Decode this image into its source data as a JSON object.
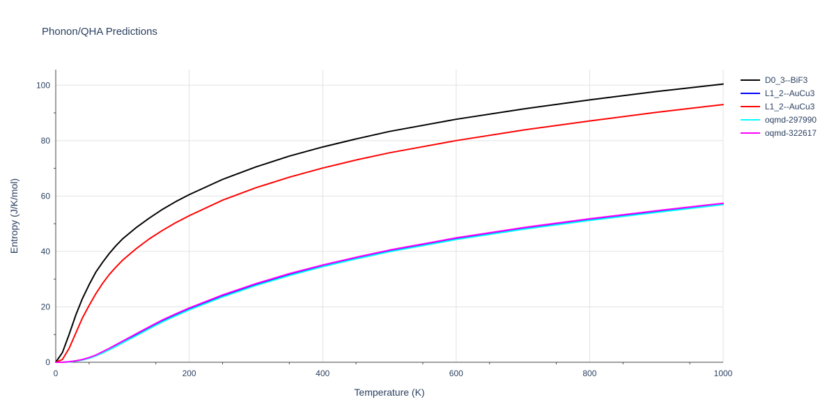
{
  "chart_data": {
    "type": "line",
    "title": "Phonon/QHA Predictions",
    "xlabel": "Temperature (K)",
    "ylabel": "Entropy (J/K/mol)",
    "xlim": [
      0,
      1000
    ],
    "ylim": [
      0,
      105.6
    ],
    "x_ticks": [
      0,
      200,
      400,
      600,
      800,
      1000
    ],
    "y_ticks": [
      0,
      20,
      40,
      60,
      80,
      100
    ],
    "grid": true,
    "legend_position": "right",
    "x": [
      0,
      10,
      20,
      30,
      40,
      50,
      60,
      70,
      80,
      90,
      100,
      120,
      140,
      160,
      180,
      200,
      250,
      300,
      350,
      400,
      450,
      500,
      600,
      700,
      800,
      900,
      1000
    ],
    "series": [
      {
        "name": "D0_3--BiF3",
        "color": "#000000",
        "values": [
          0,
          3.5,
          10,
          17,
          23,
          28,
          32.5,
          36,
          39.2,
          42,
          44.5,
          48.5,
          52,
          55.2,
          58,
          60.5,
          66,
          70.5,
          74.4,
          77.7,
          80.6,
          83.3,
          87.7,
          91.4,
          94.7,
          97.7,
          100.4
        ]
      },
      {
        "name": "L1_2--AuCu3",
        "color": "#0000ff",
        "values": [
          0,
          0,
          0.2,
          0.5,
          0.9,
          1.6,
          2.5,
          3.6,
          4.8,
          6.0,
          7.3,
          9.8,
          12.4,
          14.9,
          17.1,
          19.2,
          23.9,
          28.0,
          31.6,
          34.8,
          37.6,
          40.2,
          44.6,
          48.3,
          51.5,
          54.4,
          57.1
        ]
      },
      {
        "name": "L1_2--AuCu3",
        "color": "#ff0000",
        "values": [
          0,
          1,
          5,
          10.5,
          16,
          20.5,
          24.7,
          28.4,
          31.6,
          34.3,
          36.8,
          40.9,
          44.5,
          47.6,
          50.4,
          52.9,
          58.5,
          63,
          66.8,
          70.1,
          73,
          75.6,
          80,
          83.8,
          87.1,
          90.2,
          93
        ]
      },
      {
        "name": "oqmd-297990",
        "color": "#00ffff",
        "values": [
          0,
          0,
          0.1,
          0.4,
          0.8,
          1.4,
          2.3,
          3.3,
          4.5,
          5.7,
          7.0,
          9.5,
          12.1,
          14.6,
          16.8,
          18.9,
          23.6,
          27.7,
          31.3,
          34.5,
          37.3,
          39.9,
          44.3,
          48.0,
          51.2,
          54.1,
          56.9
        ]
      },
      {
        "name": "oqmd-322617",
        "color": "#ff00ff",
        "values": [
          0,
          0,
          0.2,
          0.5,
          1.0,
          1.7,
          2.6,
          3.8,
          5.0,
          6.3,
          7.6,
          10.2,
          12.8,
          15.3,
          17.5,
          19.6,
          24.3,
          28.4,
          32.0,
          35.1,
          37.9,
          40.5,
          44.9,
          48.6,
          51.8,
          54.7,
          57.4
        ]
      }
    ]
  }
}
